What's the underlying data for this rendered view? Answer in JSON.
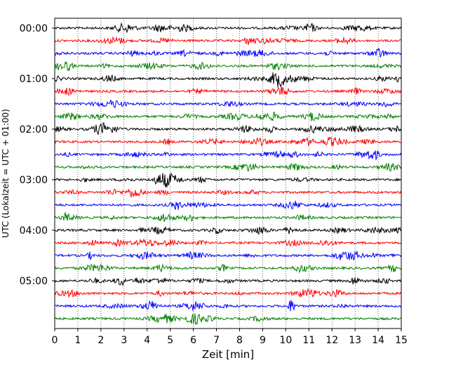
{
  "chart_data": {
    "type": "line",
    "title": "",
    "xlabel": "Zeit  [min]",
    "ylabel": "UTC (Lokalzeit = UTC + 01:00)",
    "xlim": [
      0,
      15
    ],
    "x_ticks": [
      "0",
      "1",
      "2",
      "3",
      "4",
      "5",
      "6",
      "7",
      "8",
      "9",
      "10",
      "11",
      "12",
      "13",
      "14",
      "15"
    ],
    "y_tick_labels": [
      "00:00",
      "01:00",
      "02:00",
      "03:00",
      "04:00",
      "05:00"
    ],
    "y_tick_rows": [
      0,
      4,
      8,
      12,
      16,
      20
    ],
    "rows": 24,
    "row_interval_minutes": 15,
    "x_grid": true,
    "trace_colors": [
      "#000000",
      "#ff0000",
      "#0000ff",
      "#008000"
    ]
  }
}
